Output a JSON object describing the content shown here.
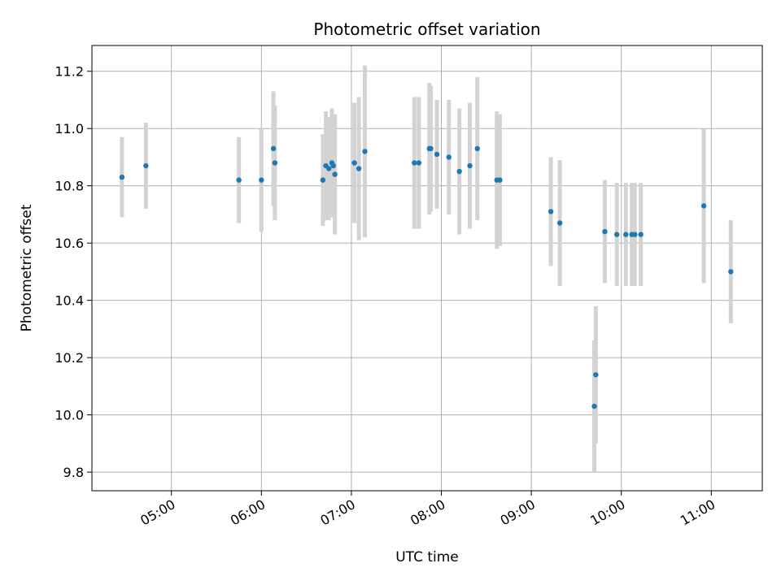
{
  "chart_data": {
    "type": "scatter",
    "title": "Photometric offset variation",
    "xlabel": "UTC time",
    "ylabel": "Photometric offset",
    "grid": true,
    "x_tick_labels": [
      "05:00",
      "06:00",
      "07:00",
      "08:00",
      "09:00",
      "10:00",
      "11:00"
    ],
    "x_tick_values": [
      "05:00",
      "06:00",
      "07:00",
      "08:00",
      "09:00",
      "10:00",
      "11:00"
    ],
    "xlim": [
      "04:07",
      "11:34"
    ],
    "y_tick_labels": [
      "9.8",
      "10.0",
      "10.2",
      "10.4",
      "10.6",
      "10.8",
      "11.0",
      "11.2"
    ],
    "y_tick_values": [
      9.8,
      10.0,
      10.2,
      10.4,
      10.6,
      10.8,
      11.0,
      11.2
    ],
    "ylim": [
      9.735,
      11.29
    ],
    "colors": {
      "points": "#1f77b4",
      "errorbars": "#d3d3d3",
      "grid": "#b0b0b0"
    },
    "points": [
      {
        "x": "04:27",
        "y": 10.83,
        "err": 0.14
      },
      {
        "x": "04:43",
        "y": 10.87,
        "err": 0.15
      },
      {
        "x": "05:45",
        "y": 10.82,
        "err": 0.15
      },
      {
        "x": "06:00",
        "y": 10.82,
        "err": 0.18
      },
      {
        "x": "06:08",
        "y": 10.93,
        "err": 0.2
      },
      {
        "x": "06:09",
        "y": 10.88,
        "err": 0.2
      },
      {
        "x": "06:41",
        "y": 10.82,
        "err": 0.16
      },
      {
        "x": "06:43",
        "y": 10.87,
        "err": 0.19
      },
      {
        "x": "06:45",
        "y": 10.86,
        "err": 0.18
      },
      {
        "x": "06:47",
        "y": 10.88,
        "err": 0.19
      },
      {
        "x": "06:48",
        "y": 10.87,
        "err": 0.18
      },
      {
        "x": "06:49",
        "y": 10.84,
        "err": 0.21
      },
      {
        "x": "07:02",
        "y": 10.88,
        "err": 0.21
      },
      {
        "x": "07:05",
        "y": 10.86,
        "err": 0.25
      },
      {
        "x": "07:09",
        "y": 10.92,
        "err": 0.3
      },
      {
        "x": "07:42",
        "y": 10.88,
        "err": 0.23
      },
      {
        "x": "07:45",
        "y": 10.88,
        "err": 0.23
      },
      {
        "x": "07:52",
        "y": 10.93,
        "err": 0.23
      },
      {
        "x": "07:53",
        "y": 10.93,
        "err": 0.22
      },
      {
        "x": "07:57",
        "y": 10.91,
        "err": 0.19
      },
      {
        "x": "08:05",
        "y": 10.9,
        "err": 0.2
      },
      {
        "x": "08:12",
        "y": 10.85,
        "err": 0.22
      },
      {
        "x": "08:19",
        "y": 10.87,
        "err": 0.22
      },
      {
        "x": "08:24",
        "y": 10.93,
        "err": 0.25
      },
      {
        "x": "08:37",
        "y": 10.82,
        "err": 0.24
      },
      {
        "x": "08:39",
        "y": 10.82,
        "err": 0.23
      },
      {
        "x": "09:13",
        "y": 10.71,
        "err": 0.19
      },
      {
        "x": "09:19",
        "y": 10.67,
        "err": 0.22
      },
      {
        "x": "09:42",
        "y": 10.03,
        "err": 0.23
      },
      {
        "x": "09:43",
        "y": 10.14,
        "err": 0.24
      },
      {
        "x": "09:49",
        "y": 10.64,
        "err": 0.18
      },
      {
        "x": "09:57",
        "y": 10.63,
        "err": 0.18
      },
      {
        "x": "10:03",
        "y": 10.63,
        "err": 0.18
      },
      {
        "x": "10:07",
        "y": 10.63,
        "err": 0.18
      },
      {
        "x": "10:09",
        "y": 10.63,
        "err": 0.18
      },
      {
        "x": "10:13",
        "y": 10.63,
        "err": 0.18
      },
      {
        "x": "10:55",
        "y": 10.73,
        "err": 0.27
      },
      {
        "x": "11:13",
        "y": 10.5,
        "err": 0.18
      }
    ]
  }
}
